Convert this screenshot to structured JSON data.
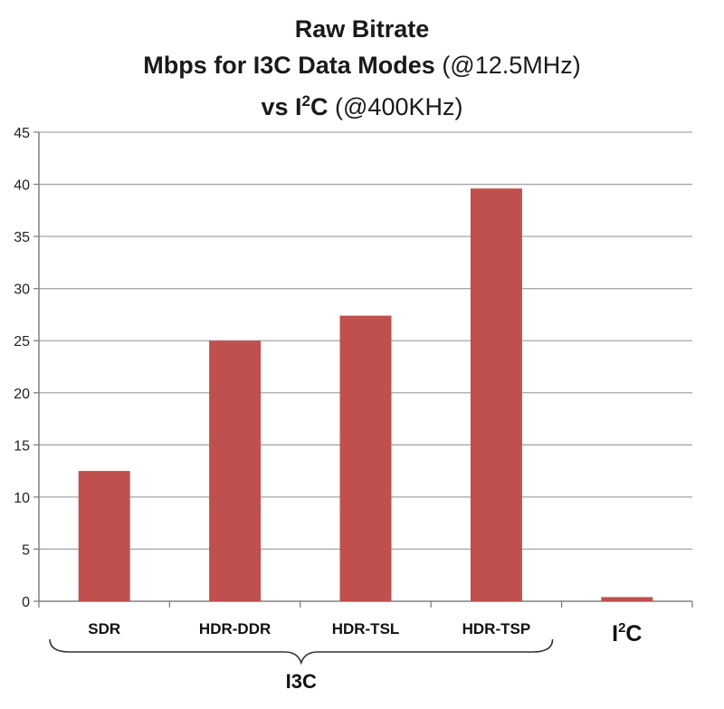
{
  "title": {
    "line1": "Raw Bitrate",
    "line2_bold": "Mbps for I3C Data Modes",
    "line2_normal": "(@12.5MHz)",
    "line3_bold_prefix": "vs I",
    "line3_sup": "2",
    "line3_bold_suffix": "C",
    "line3_normal": "(@400KHz)"
  },
  "colors": {
    "bar": "#c0504d",
    "grid": "#a6a6a6",
    "axis": "#808080"
  },
  "chart_data": {
    "type": "bar",
    "categories": [
      "SDR",
      "HDR-DDR",
      "HDR-TSL",
      "HDR-TSP",
      "I2C"
    ],
    "category_display": [
      {
        "base": "SDR",
        "sup": ""
      },
      {
        "base": "HDR-DDR",
        "sup": ""
      },
      {
        "base": "HDR-TSL",
        "sup": ""
      },
      {
        "base": "HDR-TSP",
        "sup": ""
      },
      {
        "base": "I",
        "sup": "2",
        "suffix": "C"
      }
    ],
    "values": [
      12.5,
      25,
      27.4,
      39.6,
      0.4
    ],
    "ylim": [
      0,
      45
    ],
    "yticks": [
      0,
      5,
      10,
      15,
      20,
      25,
      30,
      35,
      40,
      45
    ],
    "grid": true,
    "group": {
      "label": "I3C",
      "categories": [
        "SDR",
        "HDR-DDR",
        "HDR-TSL",
        "HDR-TSP"
      ]
    }
  }
}
